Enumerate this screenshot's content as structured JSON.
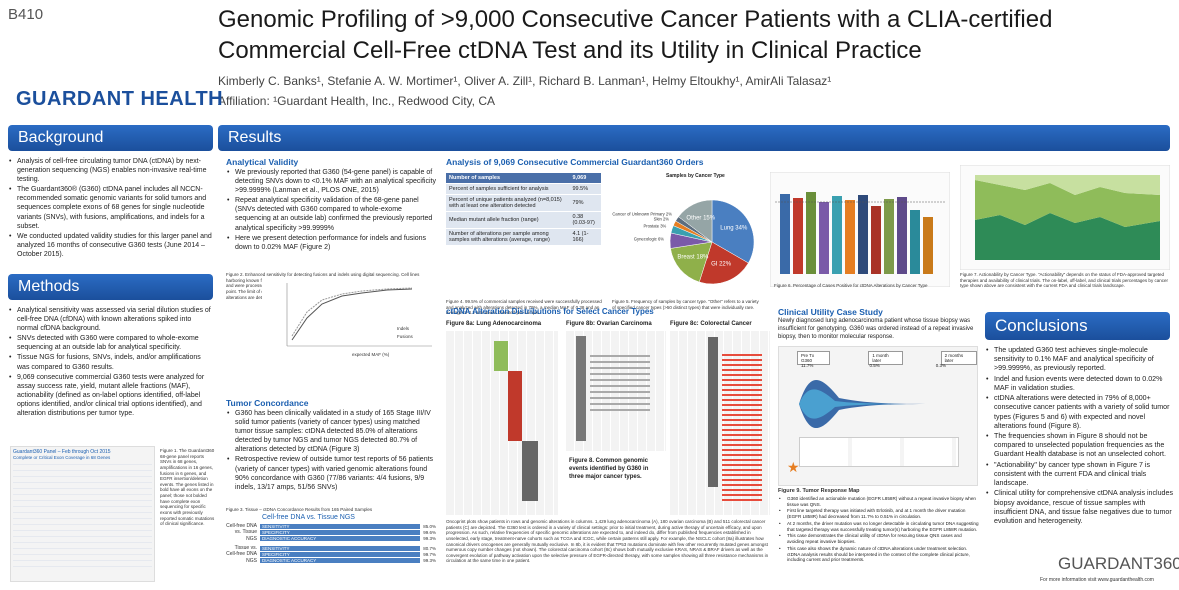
{
  "poster_id": "B410",
  "title": "Genomic Profiling of >9,000 Consecutive Cancer Patients with a CLIA-certified Commercial Cell-Free ctDNA Test and its Utility in Clinical Practice",
  "authors": "Kimberly C. Banks¹, Stefanie A. W. Mortimer¹, Oliver A. Zill¹, Richard B. Lanman¹, Helmy Eltoukhy¹, AmirAli Talasaz¹",
  "affiliation": "Affiliation: ¹Guardant Health, Inc., Redwood City, CA",
  "logo": "GUARDANT HEALTH",
  "background": {
    "heading": "Background",
    "bullets": [
      "Analysis of cell-free circulating tumor DNA (ctDNA) by next-generation sequencing (NGS) enables non-invasive real-time testing.",
      "The Guardant360® (G360) ctDNA panel includes all NCCN-recommended somatic genomic variants for solid tumors and sequences complete exons of 68 genes for single nucleotide variants (SNVs), with fusions, amplifications, and indels for a subset.",
      "We conducted updated validity studies for this larger panel and analyzed 16 months of consecutive G360 tests (June 2014 – October 2015)."
    ]
  },
  "methods": {
    "heading": "Methods",
    "bullets": [
      "Analytical sensitivity was assessed via serial dilution studies of cell-free DNA (cfDNA) with known alterations spiked into normal cfDNA background.",
      "SNVs detected with G360 were compared to whole-exome sequencing at an outside lab for analytical specificity.",
      "Tissue NGS for fusions, SNVs, indels, and/or amplifications was compared to G360 results.",
      "9,069 consecutive commercial G360 tests were analyzed for assay success rate, yield, mutant allele fractions (MAF), actionability (defined as on-label options identified, off-label options identified, and/or clinical trial options identified), and alteration distributions per tumor type."
    ],
    "fig1_title": "Guardant360 Panel – Feb through Oct 2015",
    "fig1_sub": "Complete or Critical Exon Coverage in 68 Genes",
    "fig1_caption": "Figure 1. The Guardant360 68-gene panel reports SNVs in 68 genes, amplifications in 16 genes, fusions in 6 genes, and EGFR insertion/deletion events. The genes listed in bold have all exons on the panel; those not bolded have complete exon sequencing for specific exons with previously reported somatic mutations of clinical significance."
  },
  "results": {
    "heading": "Results",
    "analytical": {
      "heading": "Analytical Validity",
      "bullets": [
        "We previously reported that G360 (54-gene panel) is capable of detecting SNVs down to <0.1% MAF with an analytical specificity >99.9999% (Lanman et al., PLOS ONE, 2015)",
        "Repeat analytical specificity validation of the 68-gene panel (SNVs detected with G360 compared to whole-exome sequencing at an outside lab) confirmed the previously reported analytical specificity >99.9999%",
        "Here we present detection performance for indels and fusions down to 0.02% MAF (Figure 2)"
      ],
      "fig2_caption": "Figure 2. Enhanced sensitivity for detecting fusions and indels using digital sequencing. Cell lines harboring known fusions and indels were mixed to obtain MAFs around the expected limit of detection and were processed in quintuplet to determine the percentage of alterations detected at each titration point. The limit of detection, where >=80% of variants are detected, is established at 0.1% MAF, however alterations are detected down to 0.02% MAF.",
      "fig2_legend": [
        "Indels",
        "Fusions"
      ],
      "fig2_xlabel": "expected MAF (%)"
    },
    "concordance": {
      "heading": "Tumor Concordance",
      "bullets": [
        "G360 has been clinically validated in a study of 165 Stage III/IV solid tumor patients (variety of cancer types) using matched tumor tissue samples: ctDNA detected 85.0% of alterations detected by tumor NGS and tumor NGS detected 80.7% of alterations detected by ctDNA (Figure 3)",
        "Retrospective review of outside tumor test reports of 56 patients (variety of cancer types) with varied genomic alterations found 90% concordance with G360 (77/86 variants: 4/4 fusions, 9/9 indels, 13/17 amps, 51/56 SNVs)"
      ],
      "fig3_caption": "Figure 3. Tissue – ctDNA Concordance Results from 165 Paired Samples",
      "fig3_title": "Cell-free DNA vs. Tissue NGS",
      "groups": [
        {
          "label": "Cell-free DNA vs. Tissue NGS",
          "rows": [
            {
              "name": "SENSITIVITY",
              "value": "85.0%"
            },
            {
              "name": "SPECIFICITY",
              "value": "99.6%"
            },
            {
              "name": "DIAGNOSTIC ACCURACY",
              "value": "99.3%"
            }
          ]
        },
        {
          "label": "Tissue vs. Cell-free DNA NGS",
          "rows": [
            {
              "name": "SENSITIVITY",
              "value": "80.7%"
            },
            {
              "name": "SPECIFICITY",
              "value": "99.7%"
            },
            {
              "name": "DIAGNOSTIC ACCURACY",
              "value": "99.3%"
            }
          ]
        }
      ]
    },
    "analysis_heading": "Analysis of 9,069 Consecutive Commercial Guardant360 Orders",
    "table": [
      [
        "Number of samples",
        "9,069"
      ],
      [
        "Percent of samples sufficient for analysis",
        "99.5%"
      ],
      [
        "Percent of unique patients analyzed (n=8,015) with at least one alteration detected",
        "79%"
      ],
      [
        "Median mutant allele fraction (range)",
        "0.38 (0.03-97)"
      ],
      [
        "Number of alterations per sample among samples with alterations (average, range)",
        "4.1 (1-166)"
      ]
    ],
    "fig4_caption": "Figure 4. 99.5% of commercial samples received were successfully processed and analyzed with alterations detected in 79%, a median MAF of 0.38 and an average of 4.1 alterations detected per sample.",
    "fig5_title": "Samples by Cancer Type",
    "fig5_caption": "Figure 5. Frequency of samples by cancer type. \"Other\" refers to a variety of specified cancer types (>50 distinct types) that were individually rare.",
    "fig6_caption": "Figure 6. Percentage of Cases Positive for ctDNA Alterations by Cancer Type",
    "fig7_caption": "Figure 7. Actionability by Cancer Type. \"Actionability\" depends on the status of FDA-approved targeted therapies and availability of clinical trials. The on-label, off-label, and clinical trials percentages by cancer type shown above are consistent with the current FDA and clinical trials landscape.",
    "distrib_heading": "ctDNA Alteration Distributions for Select Cancer Types",
    "fig8_titles": [
      "Figure 8a: Lung Adenocarcinoma",
      "Figure 8b: Ovarian Carcinoma",
      "Figure 8c: Colorectal Cancer"
    ],
    "fig8_note": "Figure 8. Common genomic events identified by G360 in three major cancer types.",
    "fig8_caption": "Oncoprint plots show patients in rows and genomic alterations in columns. 1,429 lung adenocarcinoma (A), 180 ovarian carcinoma (B) and 511 colorectal cancer patients (C) are depicted. The G360 test is ordered in a variety of clinical settings: prior to initial treatment, during active therapy of uncertain efficacy, and upon progression. As such, relative frequencies of specific genomic alterations are expected to, and indeed do, differ from published frequencies established in unselected, early stage, treatment-naïve cohorts such as TCGA and ICGC, while certain patterns still apply. For example, the NSCLC cohort (8a) illustrates how canonical drivers oncogenes are generally mutually exclusive. In 8b, it is evident that TP53 mutations dominate with few other recurrently mutated genes amongst numerous copy number changes (not shown). The colorectal carcinoma cohort (8c) shows both mutually exclusive KRAS, NRAS & BRAF drivers as well as the convergent evolution of pathway activation upon the selective pressure of EGFR-directed therapy, with some samples showing all three resistance mechanisms in circulation at the same time in one patient.",
    "case": {
      "heading": "Clinical Utility Case Study",
      "intro": "Newly diagnosed lung adenocarcinoma patient whose tissue biopsy was insufficient for genotyping. G360 was ordered instead of a repeat invasive biopsy, then to monitor molecular response.",
      "timeline": [
        "Pre Tx G360",
        "1 month later",
        "2 months later"
      ],
      "timeline_vals": [
        "11.7%",
        "0.5%",
        "0.3%"
      ],
      "fig9_caption": "Figure 9. Tumor Response Map",
      "bullets": [
        "G360 identified an actionable mutation (EGFR L858R) without a repeat invasive biopsy when tissue was QNS.",
        "First line targeted therapy was initiated with Erlotinib, and at 1 month the driver mutation (EGFR L858R) had decreased from 11.7% to 0.51% in circulation.",
        "At 2 months, the driver mutation was no longer detectable in circulating tumor DNA suggesting that targeted therapy was successfully treating tumor(s) harboring the EGFR L858R mutation.",
        "This case demonstrates the clinical utility of ctDNA for rescuing tissue QNS cases and avoiding repeat invasive biopsies.",
        "This case also shows the dynamic nature of ctDNA alterations under treatment selection. ctDNA analysis results should be interpreted in the context of the complete clinical picture, including current and prior treatments."
      ]
    }
  },
  "conclusions": {
    "heading": "Conclusions",
    "bullets": [
      "The updated G360 test achieves single-molecule sensitivity to 0.1% MAF and analytical specificity of >99.9999%, as previously reported.",
      "Indel and fusion events were detected down to 0.02% MAF in validation studies.",
      "ctDNA alterations were detected in 79% of 8,000+ consecutive cancer patients with a variety of solid tumor types (Figures 5 and 6) with expected and novel alterations found (Figure 8).",
      "The frequencies shown in Figure 8 should not be compared to unselected population frequencies as the Guardant Health database is not an unselected cohort.",
      "\"Actionability\" by cancer type shown in Figure 7 is consistent with the current FDA and clinical trials landscape.",
      "Clinical utility for comprehensive ctDNA analysis includes biopsy avoidance, rescue of tissue samples with insufficient DNA, and tissue false negatives due to tumor evolution and heterogeneity."
    ],
    "logo": "GUARDANT360",
    "footer": "For more information visit www.guardanthealth.com"
  },
  "chart_data": {
    "type": "pie",
    "title": "Samples by Cancer Type",
    "categories": [
      "Lung",
      "GI",
      "Breast",
      "Gynecologic",
      "Prostate",
      "Skin",
      "Cancer of Unknown Primary",
      "Other"
    ],
    "values": [
      34,
      22,
      18,
      6,
      3,
      2,
      2,
      15
    ],
    "colors": [
      "#4a7fc1",
      "#c0392b",
      "#8fb04a",
      "#7a5aa8",
      "#3aa0b0",
      "#e67e22",
      "#5d6d7e",
      "#95a5a6"
    ]
  }
}
